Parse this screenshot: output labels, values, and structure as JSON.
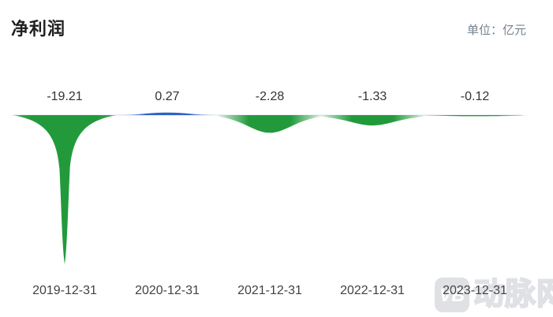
{
  "page": {
    "background": "#ffffff"
  },
  "header": {
    "title": "净利润",
    "unit_label": "单位：亿元"
  },
  "watermark": {
    "badge_text": "VB",
    "brand_text": "动脉网"
  },
  "chart_data": {
    "type": "area",
    "title": "净利润",
    "unit": "亿元",
    "categories": [
      "2019-12-31",
      "2020-12-31",
      "2021-12-31",
      "2022-12-31",
      "2023-12-31"
    ],
    "values": [
      -19.21,
      0.27,
      -2.28,
      -1.33,
      -0.12
    ],
    "value_labels": [
      "-19.21",
      "0.27",
      "-2.28",
      "-1.33",
      "-0.12"
    ],
    "series_name": "净利润",
    "baseline_value": 0,
    "ylim": [
      -20,
      1
    ],
    "grid": false,
    "legend": false,
    "colors": {
      "negative": "#229a3c",
      "positive": "#2e63c4",
      "baseline": "#e4ecf4",
      "value_label": "#333333",
      "axis_label": "#424242"
    }
  }
}
